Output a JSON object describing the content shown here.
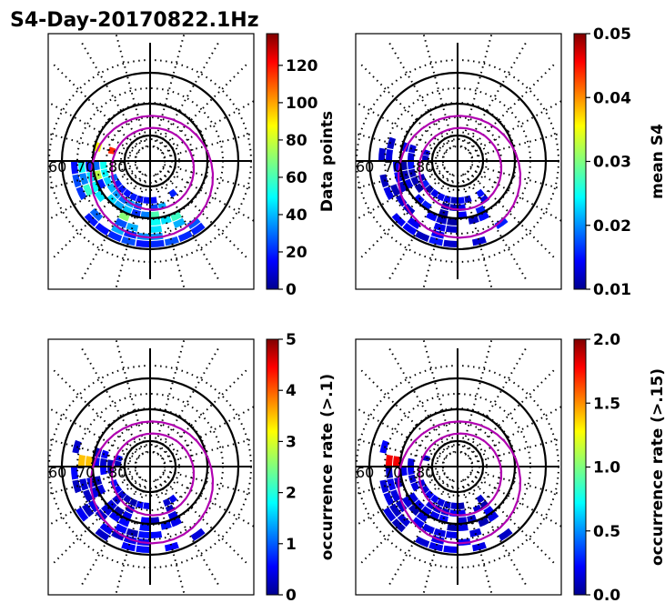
{
  "title": "S4-Day-20170822.1Hz",
  "colors": {
    "boundary": "#b000b0",
    "grid": "#000000"
  },
  "chart_data": [
    {
      "type": "heatmap",
      "projection": "polar",
      "colorbar_label": "Data points",
      "colorbar_ticks": [
        "0",
        "20",
        "40",
        "60",
        "80",
        "100",
        "120"
      ],
      "vmin": 0,
      "vmax": 137,
      "lat_labels": [
        "60",
        "70",
        "80"
      ],
      "style": "count"
    },
    {
      "type": "heatmap",
      "projection": "polar",
      "colorbar_label": "mean S4",
      "colorbar_ticks": [
        "0.01",
        "0.02",
        "0.03",
        "0.04",
        "0.05"
      ],
      "vmin": 0.01,
      "vmax": 0.05,
      "lat_labels": [
        "60",
        "70",
        "80"
      ],
      "style": "low"
    },
    {
      "type": "heatmap",
      "projection": "polar",
      "colorbar_label": "occurrence rate (>.1)",
      "colorbar_ticks": [
        "0",
        "1",
        "2",
        "3",
        "4",
        "5"
      ],
      "vmin": 0,
      "vmax": 5,
      "lat_labels": [
        "60",
        "70",
        "80"
      ],
      "style": "rate1"
    },
    {
      "type": "heatmap",
      "projection": "polar",
      "colorbar_label": "occurrence rate (>.15)",
      "colorbar_ticks": [
        "0.0",
        "0.5",
        "1.0",
        "1.5",
        "2.0"
      ],
      "vmin": 0,
      "vmax": 2,
      "lat_labels": [
        "60",
        "70",
        "80"
      ],
      "style": "rate2"
    }
  ]
}
